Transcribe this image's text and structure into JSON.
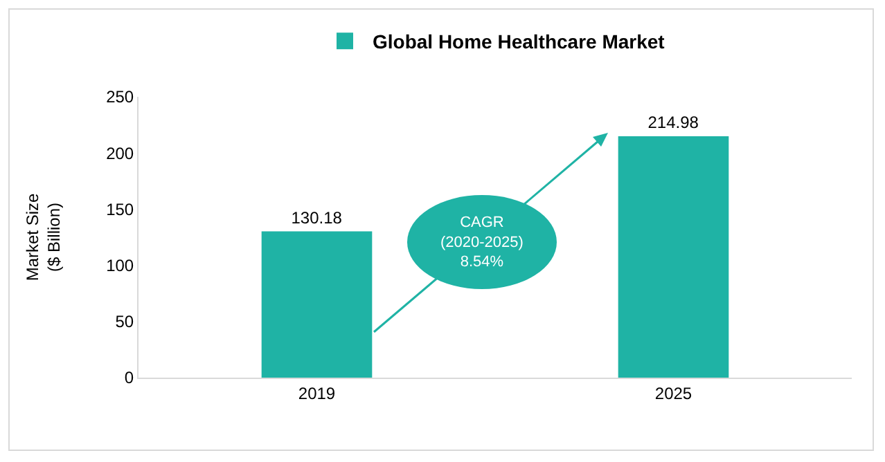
{
  "chart_data": {
    "type": "bar",
    "categories": [
      "2019",
      "2025"
    ],
    "series": [
      {
        "name": "Global Home Healthcare Market",
        "color": "#1fb3a5",
        "values": [
          130.18,
          214.98
        ]
      }
    ],
    "ylabel": "Market Size\n($ Billion)",
    "ylim": [
      0,
      250
    ],
    "yticks": [
      0,
      50,
      100,
      150,
      200,
      250
    ],
    "grid": false,
    "legend": "top",
    "data_labels": true,
    "annotations": [
      "CAGR\n(2020-2025)\n8.54%"
    ]
  }
}
